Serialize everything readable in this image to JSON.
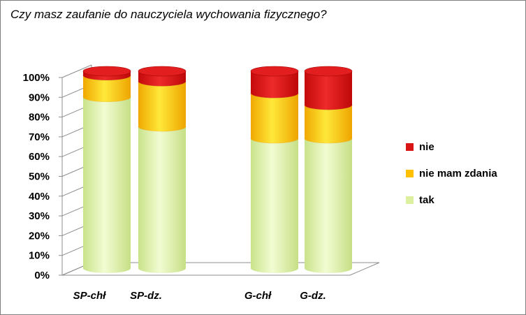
{
  "chart_data": {
    "type": "bar",
    "stacked": true,
    "percent": true,
    "style": "3d-cylinder",
    "title": "Czy masz zaufanie do nauczyciela wychowania fizycznego?",
    "categories": [
      "SP-chł",
      "SP-dz.",
      "G-chł",
      "G-dz."
    ],
    "series": [
      {
        "name": "tak",
        "values": [
          87,
          72,
          66,
          66
        ],
        "color": "#dcf0a0"
      },
      {
        "name": "nie mam zdania",
        "values": [
          11,
          23,
          23,
          17
        ],
        "color": "#ffc000"
      },
      {
        "name": "nie",
        "values": [
          2,
          5,
          11,
          17
        ],
        "color": "#d91414"
      }
    ],
    "y_ticks": [
      "0%",
      "10%",
      "20%",
      "30%",
      "40%",
      "50%",
      "60%",
      "70%",
      "80%",
      "90%",
      "100%"
    ],
    "ylim": [
      0,
      100
    ],
    "legend_position": "right",
    "grid": false
  }
}
